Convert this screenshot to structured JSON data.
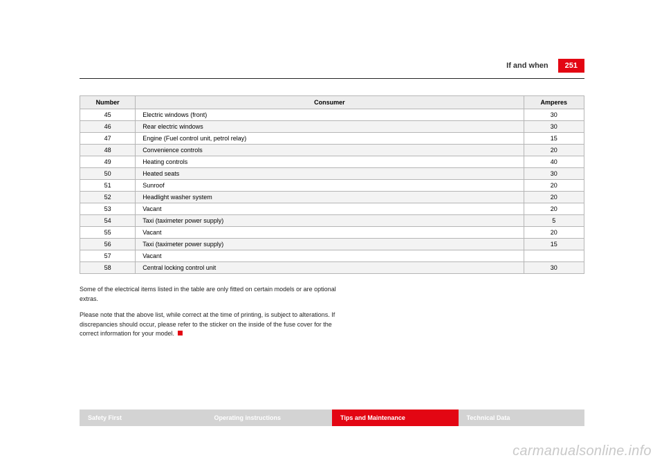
{
  "header": {
    "section_title": "If and when",
    "page_number": "251"
  },
  "table": {
    "columns": [
      "Number",
      "Consumer",
      "Amperes"
    ],
    "rows": [
      [
        "45",
        "Electric windows (front)",
        "30"
      ],
      [
        "46",
        "Rear electric windows",
        "30"
      ],
      [
        "47",
        "Engine (Fuel control unit, petrol relay)",
        "15"
      ],
      [
        "48",
        "Convenience controls",
        "20"
      ],
      [
        "49",
        "Heating controls",
        "40"
      ],
      [
        "50",
        "Heated seats",
        "30"
      ],
      [
        "51",
        "Sunroof",
        "20"
      ],
      [
        "52",
        "Headlight washer system",
        "20"
      ],
      [
        "53",
        "Vacant",
        "20"
      ],
      [
        "54",
        "Taxi (taximeter power supply)",
        "5"
      ],
      [
        "55",
        "Vacant",
        "20"
      ],
      [
        "56",
        "Taxi (taximeter power supply)",
        "15"
      ],
      [
        "57",
        "Vacant",
        ""
      ],
      [
        "58",
        "Central locking control unit",
        "30"
      ]
    ],
    "header_bg": "#ededed",
    "alt_row_bg": "#f3f3f3",
    "border_color": "#b5b5b5",
    "font_size": 9
  },
  "paragraphs": {
    "p1": "Some of the electrical items listed in the table are only fitted on certain models or are optional extras.",
    "p2": "Please note that the above list, while correct at the time of printing, is subject to alterations. If discrepancies should occur, please refer to the sticker on the inside of the fuse cover for the correct information for your model."
  },
  "tabs": {
    "items": [
      {
        "label": "Safety First",
        "active": false
      },
      {
        "label": "Operating instructions",
        "active": false
      },
      {
        "label": "Tips and Maintenance",
        "active": true
      },
      {
        "label": "Technical Data",
        "active": false
      }
    ],
    "grey_bg": "#d3d3d3",
    "red_bg": "#e30613"
  },
  "watermark": "carmanualsonline.info",
  "colors": {
    "accent_red": "#e30613",
    "text": "#222222",
    "page_bg": "#ffffff"
  }
}
